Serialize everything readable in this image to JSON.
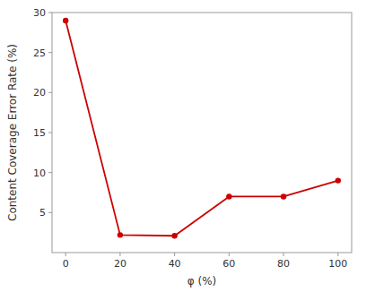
{
  "chart_data": {
    "type": "line",
    "x": [
      0,
      20,
      40,
      60,
      80,
      100
    ],
    "values": [
      29,
      2.2,
      2.1,
      7.0,
      7.0,
      9.0
    ],
    "color": "#cc0000",
    "marker": "circle",
    "xlabel": "φ (%)",
    "ylabel": "Content Coverage Error Rate (%)",
    "xlim": [
      -5,
      105
    ],
    "ylim": [
      0,
      30
    ],
    "xticks": [
      0,
      20,
      40,
      60,
      80,
      100
    ],
    "yticks": [
      5,
      10,
      15,
      20,
      25,
      30
    ],
    "grid": false
  }
}
